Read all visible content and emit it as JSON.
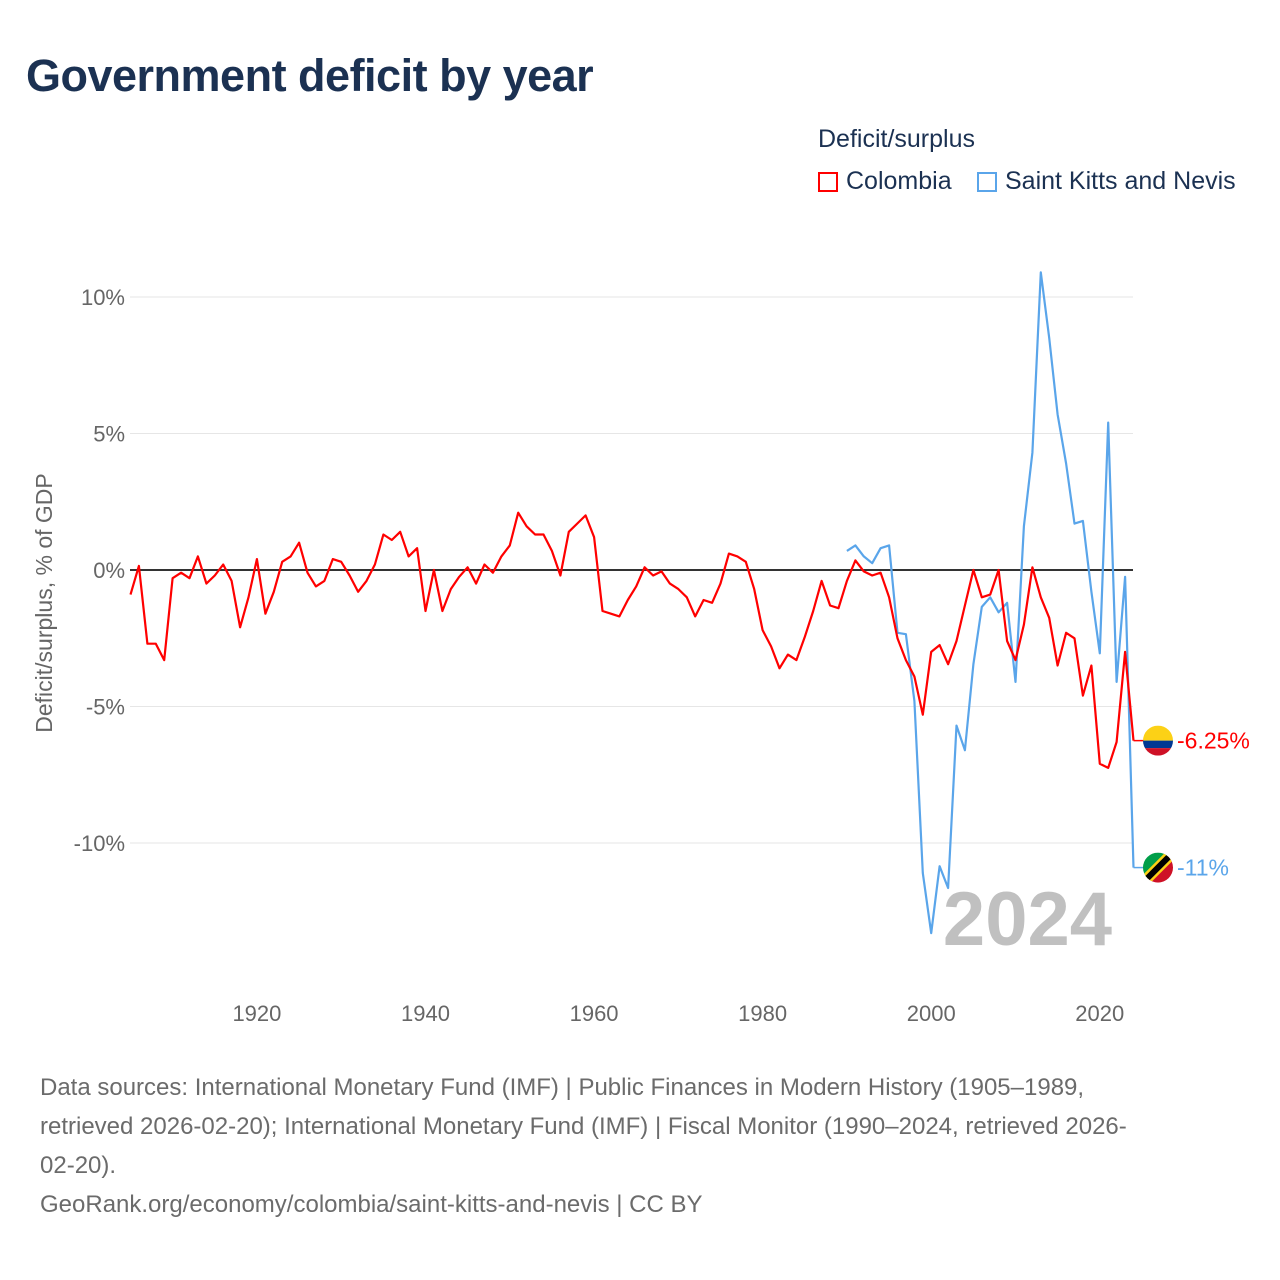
{
  "title": "Government deficit by year",
  "legend": {
    "title": "Deficit/surplus",
    "items": [
      {
        "label": "Colombia",
        "color": "#ff0000"
      },
      {
        "label": "Saint Kitts and Nevis",
        "color": "#5aa5ea"
      }
    ]
  },
  "footer": {
    "lines": [
      "Data sources: International Monetary Fund (IMF) | Public Finances in Modern History (1905–1989,",
      "retrieved 2026-02-20); International Monetary Fund (IMF) | Fiscal Monitor (1990–2024, retrieved 2026-",
      "02-20).",
      "GeoRank.org/economy/colombia/saint-kitts-and-nevis | CC BY"
    ]
  },
  "chart_data": {
    "type": "line",
    "title": "Government deficit by year",
    "xlabel": "",
    "ylabel": "Deficit/surplus, % of GDP",
    "xlim": [
      1905,
      2024
    ],
    "ylim": [
      -14.5,
      11.5
    ],
    "x_ticks": [
      1920,
      1940,
      1960,
      1980,
      2000,
      2020
    ],
    "x_tick_labels": [
      "1920",
      "1940",
      "1960",
      "1980",
      "2000",
      "2020"
    ],
    "y_ticks": [
      10,
      5,
      0,
      -5,
      -10
    ],
    "y_tick_labels": [
      "10%",
      "5%",
      "0%",
      "-5%",
      "-10%"
    ],
    "grid": true,
    "legend_position": "top-right",
    "year_watermark": "2024",
    "series": [
      {
        "name": "Colombia",
        "color": "#ff0000",
        "start_year": 1905,
        "end_label": "-6.25%",
        "values": [
          -0.9,
          0.15,
          -2.7,
          -2.7,
          -3.3,
          -0.3,
          -0.1,
          -0.3,
          0.5,
          -0.5,
          -0.2,
          0.2,
          -0.4,
          -2.1,
          -1.0,
          0.4,
          -1.6,
          -0.8,
          0.3,
          0.5,
          1.0,
          -0.1,
          -0.6,
          -0.4,
          0.4,
          0.3,
          -0.2,
          -0.8,
          -0.4,
          0.2,
          1.3,
          1.1,
          1.4,
          0.5,
          0.8,
          -1.5,
          0.0,
          -1.5,
          -0.7,
          -0.25,
          0.1,
          -0.5,
          0.2,
          -0.1,
          0.5,
          0.9,
          2.1,
          1.6,
          1.3,
          1.3,
          0.7,
          -0.2,
          1.4,
          1.7,
          2.0,
          1.2,
          -1.5,
          -1.6,
          -1.7,
          -1.1,
          -0.6,
          0.1,
          -0.2,
          -0.05,
          -0.5,
          -0.7,
          -1.0,
          -1.7,
          -1.1,
          -1.2,
          -0.5,
          0.6,
          0.5,
          0.3,
          -0.7,
          -2.2,
          -2.8,
          -3.6,
          -3.1,
          -3.3,
          -2.45,
          -1.5,
          -0.4,
          -1.3,
          -1.4,
          -0.4,
          0.35,
          -0.05,
          -0.2,
          -0.1,
          -1.0,
          -2.5,
          -3.3,
          -3.9,
          -5.3,
          -3.0,
          -2.75,
          -3.45,
          -2.6,
          -1.3,
          0.0,
          -1.0,
          -0.9,
          0.0,
          -2.6,
          -3.3,
          -2.0,
          0.1,
          -1.0,
          -1.75,
          -3.5,
          -2.3,
          -2.5,
          -4.6,
          -3.5,
          -7.1,
          -7.25,
          -6.3,
          -3.0,
          -6.25
        ]
      },
      {
        "name": "Saint Kitts and Nevis",
        "color": "#5aa5ea",
        "start_year": 1990,
        "end_label": "-11%",
        "values": [
          0.7,
          0.9,
          0.5,
          0.25,
          0.8,
          0.9,
          -2.3,
          -2.35,
          -4.8,
          -11.1,
          -13.3,
          -10.85,
          -11.65,
          -5.7,
          -6.6,
          -3.45,
          -1.35,
          -1.0,
          -1.55,
          -1.2,
          -4.1,
          1.6,
          4.3,
          10.9,
          8.5,
          5.7,
          3.9,
          1.7,
          1.8,
          -0.8,
          -3.05,
          5.4,
          -4.1,
          -0.25,
          -10.9
        ]
      }
    ]
  }
}
